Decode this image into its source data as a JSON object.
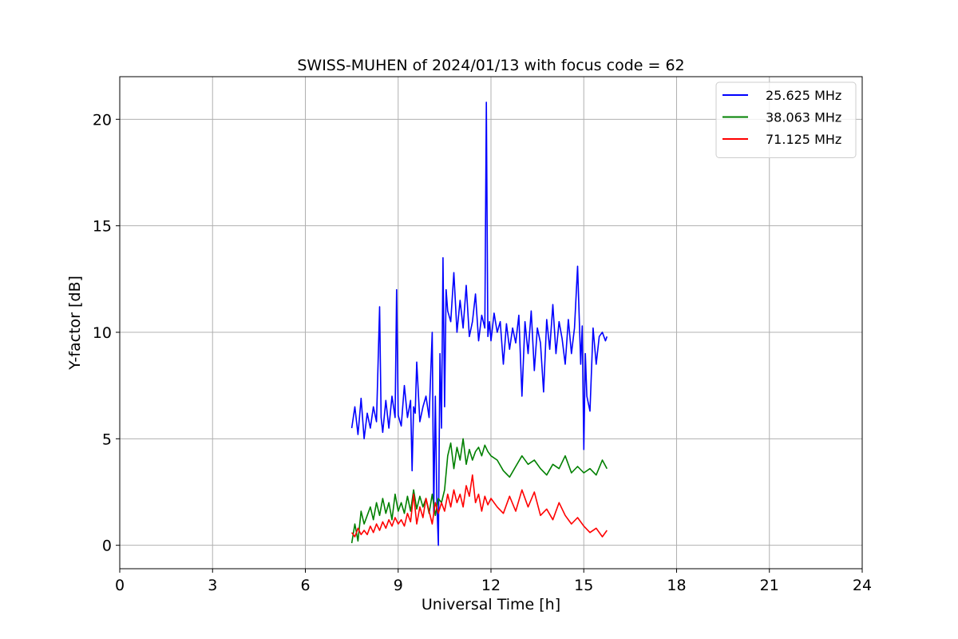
{
  "chart_data": {
    "type": "line",
    "title": "SWISS-MUHEN of 2024/01/13 with focus code = 62",
    "xlabel": "Universal Time [h]",
    "ylabel": "Y-factor [dB]",
    "xlim": [
      0,
      24
    ],
    "ylim": [
      -1.1,
      22
    ],
    "xticks": [
      0,
      3,
      6,
      9,
      12,
      15,
      18,
      21,
      24
    ],
    "yticks": [
      0,
      5,
      10,
      15,
      20
    ],
    "grid": true,
    "legend_position": "top-right",
    "series": [
      {
        "name": "25.625 MHz",
        "color": "#0000ff",
        "x": [
          7.5,
          7.6,
          7.7,
          7.75,
          7.8,
          7.9,
          8.0,
          8.1,
          8.2,
          8.3,
          8.4,
          8.45,
          8.5,
          8.6,
          8.7,
          8.8,
          8.9,
          8.95,
          9.0,
          9.1,
          9.2,
          9.3,
          9.4,
          9.45,
          9.5,
          9.55,
          9.6,
          9.7,
          9.8,
          9.9,
          10.0,
          10.1,
          10.15,
          10.2,
          10.25,
          10.3,
          10.35,
          10.4,
          10.45,
          10.5,
          10.55,
          10.6,
          10.7,
          10.8,
          10.9,
          11.0,
          11.1,
          11.2,
          11.3,
          11.4,
          11.5,
          11.6,
          11.7,
          11.8,
          11.85,
          11.9,
          11.95,
          12.0,
          12.1,
          12.2,
          12.3,
          12.4,
          12.5,
          12.6,
          12.7,
          12.8,
          12.9,
          13.0,
          13.1,
          13.2,
          13.3,
          13.4,
          13.5,
          13.6,
          13.7,
          13.8,
          13.9,
          14.0,
          14.1,
          14.2,
          14.3,
          14.4,
          14.5,
          14.6,
          14.7,
          14.8,
          14.9,
          14.95,
          15.0,
          15.05,
          15.1,
          15.2,
          15.3,
          15.4,
          15.5,
          15.6,
          15.7,
          15.75
        ],
        "y": [
          5.5,
          6.5,
          5.2,
          6.0,
          6.9,
          5.0,
          6.2,
          5.5,
          6.5,
          5.8,
          11.2,
          6.0,
          5.3,
          6.8,
          5.5,
          7.0,
          6.0,
          12.0,
          6.1,
          5.6,
          7.5,
          6.0,
          6.8,
          3.5,
          6.5,
          6.2,
          8.6,
          5.8,
          6.5,
          7.0,
          6.0,
          10.0,
          1.5,
          7.0,
          2.0,
          0.0,
          9.0,
          5.5,
          13.5,
          6.5,
          12.0,
          11.0,
          10.5,
          12.8,
          10.0,
          11.5,
          10.2,
          12.2,
          9.8,
          10.5,
          11.8,
          9.6,
          10.8,
          10.2,
          20.8,
          9.8,
          10.5,
          9.6,
          10.9,
          10.0,
          10.5,
          8.5,
          10.4,
          9.2,
          10.2,
          9.5,
          10.8,
          7.0,
          10.5,
          9.0,
          11.0,
          8.2,
          10.2,
          9.5,
          7.2,
          10.6,
          9.2,
          11.3,
          9.0,
          10.5,
          9.7,
          8.5,
          10.6,
          9.0,
          10.2,
          13.1,
          8.5,
          10.3,
          4.5,
          9.0,
          7.0,
          6.3,
          10.2,
          8.5,
          9.8,
          10.0,
          9.6,
          9.8
        ]
      },
      {
        "name": "38.063 MHz",
        "color": "#008000",
        "x": [
          7.5,
          7.6,
          7.7,
          7.8,
          7.9,
          8.0,
          8.1,
          8.2,
          8.3,
          8.4,
          8.5,
          8.6,
          8.7,
          8.8,
          8.9,
          9.0,
          9.1,
          9.2,
          9.3,
          9.4,
          9.5,
          9.6,
          9.7,
          9.8,
          9.9,
          10.0,
          10.1,
          10.2,
          10.3,
          10.4,
          10.5,
          10.6,
          10.7,
          10.8,
          10.9,
          11.0,
          11.1,
          11.2,
          11.3,
          11.4,
          11.5,
          11.6,
          11.7,
          11.8,
          11.9,
          12.0,
          12.2,
          12.4,
          12.6,
          12.8,
          13.0,
          13.2,
          13.4,
          13.6,
          13.8,
          14.0,
          14.2,
          14.4,
          14.6,
          14.8,
          15.0,
          15.2,
          15.4,
          15.6,
          15.75
        ],
        "y": [
          0.1,
          1.0,
          0.2,
          1.6,
          1.0,
          1.4,
          1.8,
          1.2,
          2.0,
          1.4,
          2.2,
          1.5,
          2.0,
          1.2,
          2.4,
          1.6,
          2.0,
          1.5,
          2.3,
          1.6,
          2.6,
          1.7,
          2.3,
          1.8,
          2.2,
          1.5,
          2.4,
          1.4,
          2.2,
          2.0,
          2.6,
          4.2,
          4.8,
          3.6,
          4.6,
          4.0,
          5.0,
          3.8,
          4.5,
          4.0,
          4.4,
          4.6,
          4.2,
          4.7,
          4.4,
          4.2,
          4.0,
          3.5,
          3.2,
          3.7,
          4.2,
          3.8,
          4.0,
          3.6,
          3.3,
          3.8,
          3.6,
          4.2,
          3.4,
          3.7,
          3.4,
          3.6,
          3.3,
          4.0,
          3.6
        ]
      },
      {
        "name": "71.125 MHz",
        "color": "#ff0000",
        "x": [
          7.5,
          7.6,
          7.7,
          7.8,
          7.9,
          8.0,
          8.1,
          8.2,
          8.3,
          8.4,
          8.5,
          8.6,
          8.7,
          8.8,
          8.9,
          9.0,
          9.1,
          9.2,
          9.3,
          9.4,
          9.5,
          9.6,
          9.7,
          9.8,
          9.9,
          10.0,
          10.1,
          10.2,
          10.3,
          10.4,
          10.5,
          10.6,
          10.7,
          10.8,
          10.9,
          11.0,
          11.1,
          11.2,
          11.3,
          11.4,
          11.5,
          11.6,
          11.7,
          11.8,
          11.9,
          12.0,
          12.2,
          12.4,
          12.6,
          12.8,
          13.0,
          13.2,
          13.4,
          13.6,
          13.8,
          14.0,
          14.2,
          14.4,
          14.6,
          14.8,
          15.0,
          15.2,
          15.4,
          15.6,
          15.75
        ],
        "y": [
          0.6,
          0.4,
          0.8,
          0.5,
          0.7,
          0.5,
          0.9,
          0.6,
          1.0,
          0.7,
          1.1,
          0.8,
          1.2,
          0.9,
          1.3,
          1.0,
          1.2,
          0.9,
          1.5,
          1.1,
          2.4,
          1.0,
          1.8,
          1.3,
          2.2,
          1.6,
          1.0,
          2.0,
          1.5,
          2.0,
          1.6,
          2.4,
          1.8,
          2.6,
          2.0,
          2.4,
          1.8,
          2.8,
          2.3,
          3.3,
          2.0,
          2.4,
          1.6,
          2.3,
          1.9,
          2.2,
          1.8,
          1.5,
          2.3,
          1.6,
          2.6,
          1.8,
          2.5,
          1.4,
          1.7,
          1.2,
          2.0,
          1.4,
          1.0,
          1.3,
          0.9,
          0.6,
          0.8,
          0.4,
          0.7
        ]
      }
    ]
  }
}
